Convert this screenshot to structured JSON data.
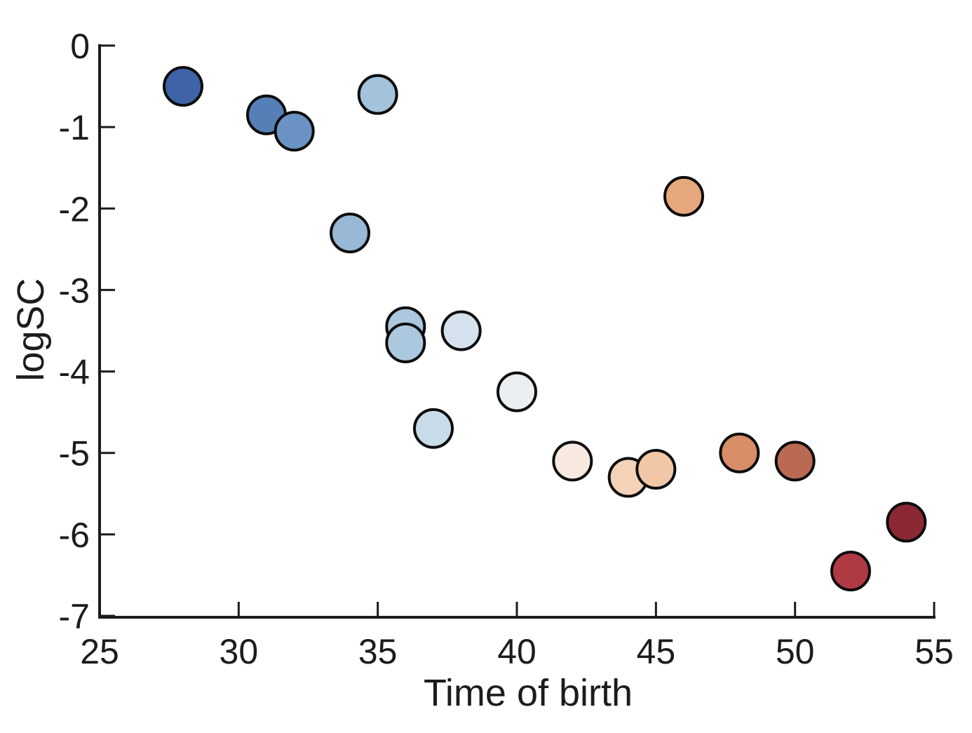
{
  "figure": {
    "background": "#ffffff",
    "axis_color": "#1c1c1c",
    "text_color": "#1c1c1c"
  },
  "chart_data": {
    "type": "scatter",
    "title": "",
    "xlabel": "Time of birth",
    "ylabel": "logSC",
    "xlim": [
      25,
      55
    ],
    "ylim": [
      -7,
      0
    ],
    "xticks": [
      "25",
      "30",
      "35",
      "40",
      "45",
      "50",
      "55"
    ],
    "xtick_values": [
      25,
      30,
      35,
      40,
      45,
      50,
      55
    ],
    "yticks": [
      "0",
      "-1",
      "-2",
      "-3",
      "-4",
      "-5",
      "-6",
      "-7"
    ],
    "ytick_values": [
      0,
      -1,
      -2,
      -3,
      -4,
      -5,
      -6,
      -7
    ],
    "grid": false,
    "legend": null,
    "colormap": "blue-to-red (flipped RdBu), mapped to x value",
    "marker": {
      "radius": 27,
      "stroke": "#0d0d0d",
      "stroke_width": 4
    },
    "points": [
      {
        "x": 28,
        "y": -0.5,
        "color": "#3E63A9"
      },
      {
        "x": 31,
        "y": -0.85,
        "color": "#567FB7"
      },
      {
        "x": 32,
        "y": -1.05,
        "color": "#6A93C3"
      },
      {
        "x": 34,
        "y": -2.3,
        "color": "#98B8D5"
      },
      {
        "x": 35,
        "y": -0.6,
        "color": "#A3C2DB"
      },
      {
        "x": 36,
        "y": -3.45,
        "color": "#ACC8DF"
      },
      {
        "x": 36,
        "y": -3.65,
        "color": "#ACC8DF"
      },
      {
        "x": 37,
        "y": -4.7,
        "color": "#C8DBE9"
      },
      {
        "x": 38,
        "y": -3.5,
        "color": "#D5E2ED"
      },
      {
        "x": 40,
        "y": -4.25,
        "color": "#EBEFF2"
      },
      {
        "x": 42,
        "y": -5.1,
        "color": "#F7E9DF"
      },
      {
        "x": 44,
        "y": -5.3,
        "color": "#F4D2B7"
      },
      {
        "x": 45,
        "y": -5.2,
        "color": "#F0C8A8"
      },
      {
        "x": 46,
        "y": -1.85,
        "color": "#E7A87E"
      },
      {
        "x": 48,
        "y": -5.0,
        "color": "#D88E68"
      },
      {
        "x": 50,
        "y": -5.1,
        "color": "#BA6A52"
      },
      {
        "x": 52,
        "y": -6.45,
        "color": "#B03A44"
      },
      {
        "x": 54,
        "y": -5.85,
        "color": "#8C2833"
      }
    ]
  }
}
